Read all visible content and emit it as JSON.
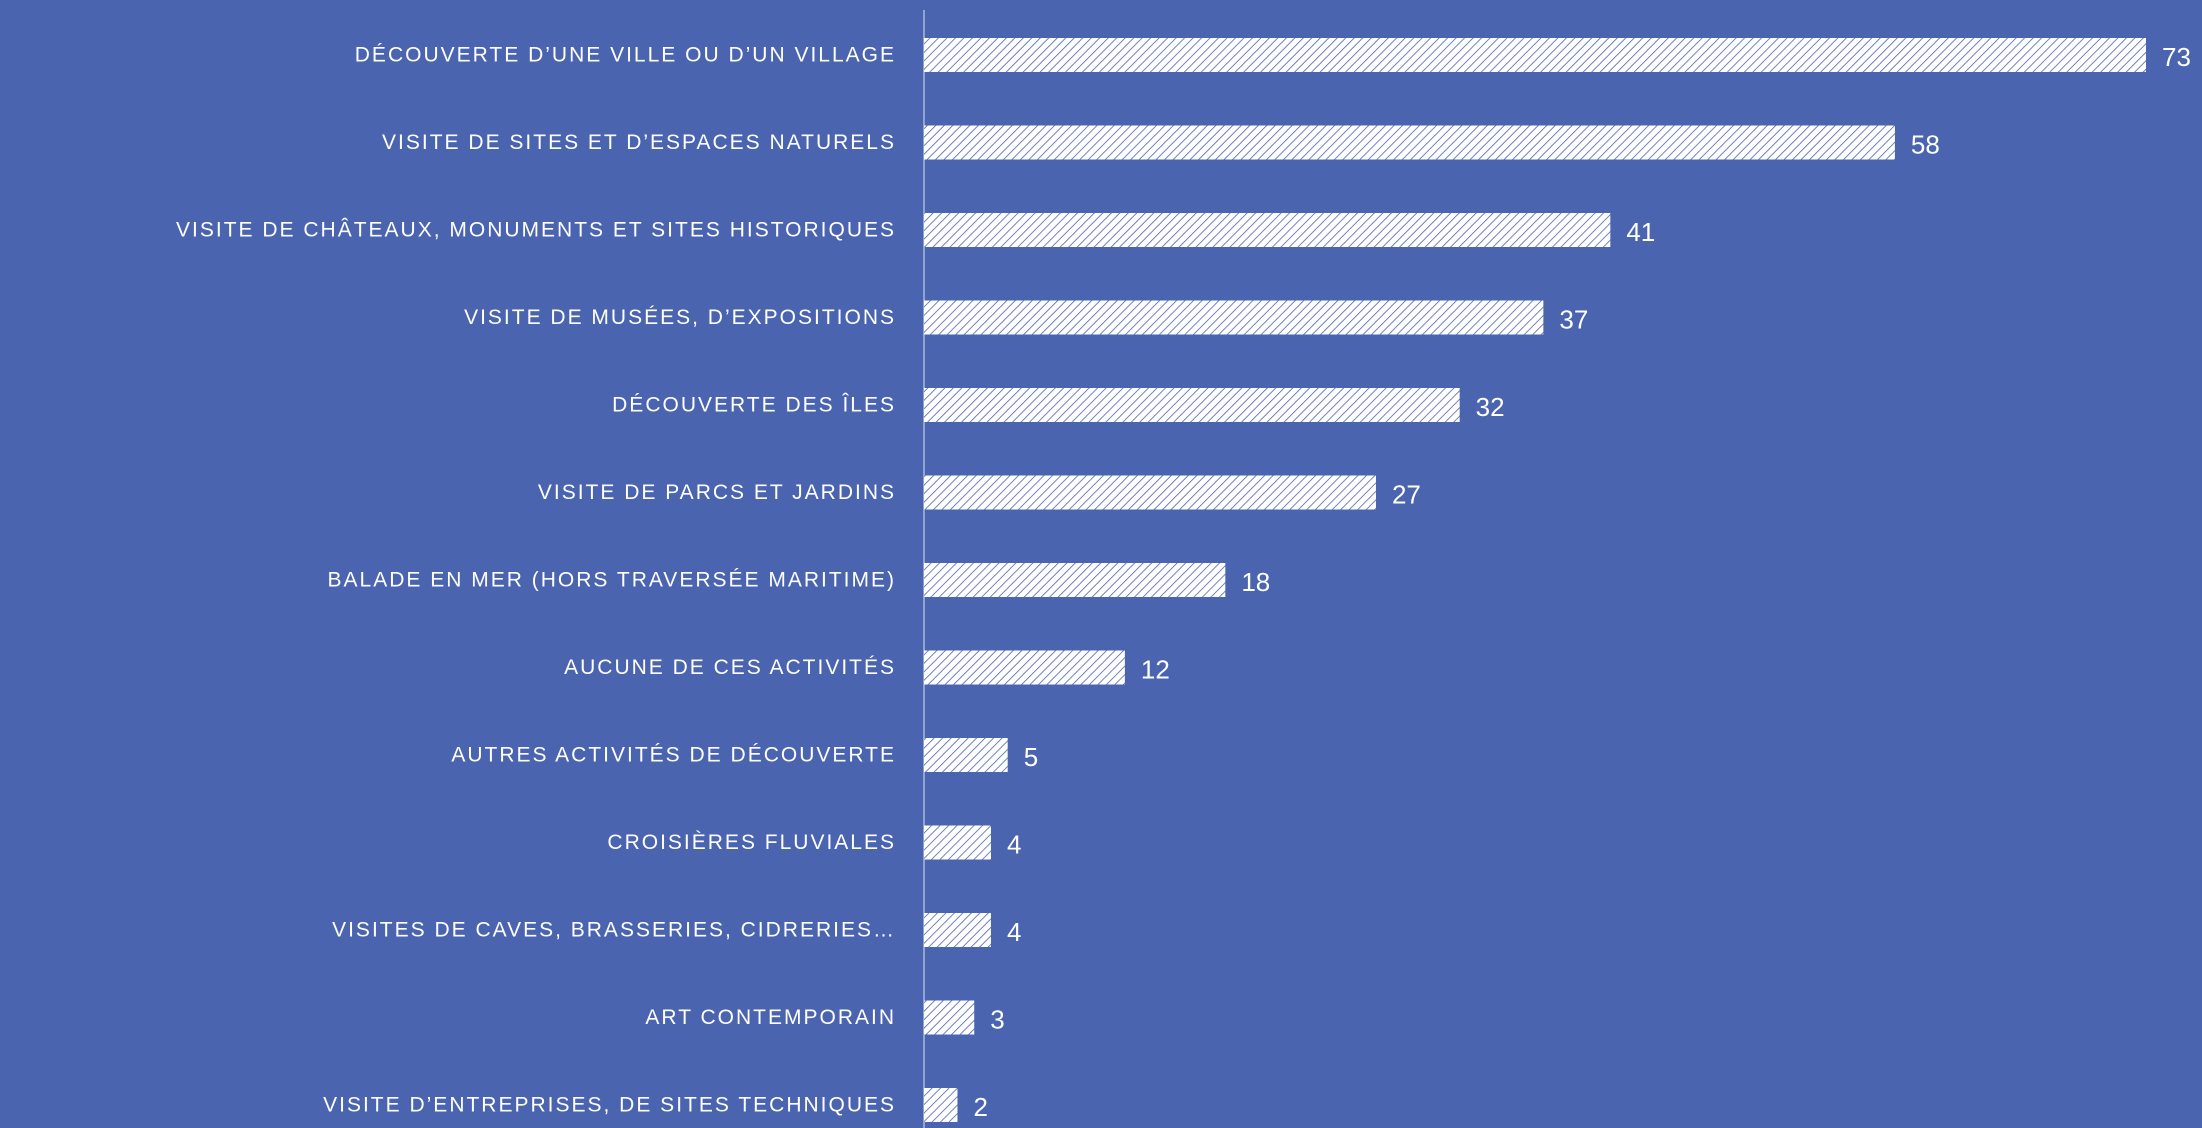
{
  "chart_data": {
    "type": "bar",
    "orientation": "horizontal",
    "color": "#ffffff",
    "categories": [
      "DÉCOUVERTE D’UNE VILLE OU D’UN VILLAGE",
      "VISITE DE SITES ET D’ESPACES NATURELS",
      "VISITE DE CHÂTEAUX, MONUMENTS ET SITES HISTORIQUES",
      "VISITE DE MUSÉES, D’EXPOSITIONS",
      "DÉCOUVERTE DES ÎLES",
      "VISITE DE PARCS ET JARDINS",
      "BALADE EN MER (HORS TRAVERSÉE MARITIME)",
      "AUCUNE DE CES ACTIVITÉS",
      "AUTRES ACTIVITÉS DE DÉCOUVERTE",
      "CROISIÈRES FLUVIALES",
      "VISITES DE CAVES, BRASSERIES, CIDRERIES…",
      "ART CONTEMPORAIN",
      "VISITE D’ENTREPRISES, DE SITES TECHNIQUES"
    ],
    "values": [
      73,
      58,
      41,
      37,
      32,
      27,
      18,
      12,
      5,
      4,
      4,
      3,
      2
    ]
  }
}
